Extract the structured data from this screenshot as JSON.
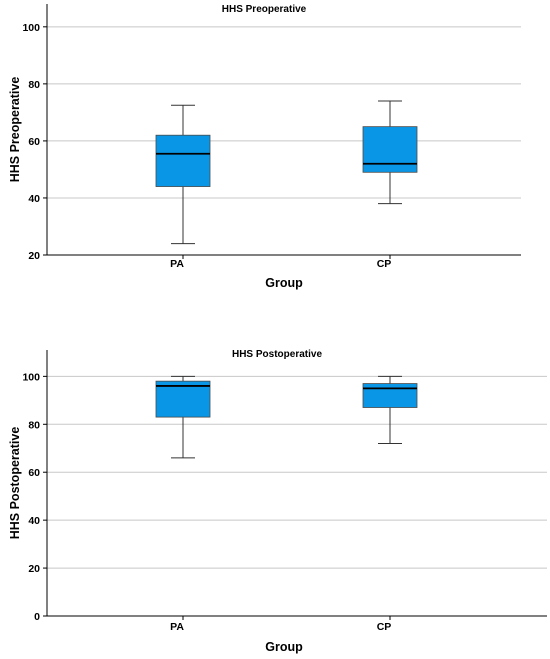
{
  "chart_data": [
    {
      "type": "box",
      "title": "HHS Preoperative",
      "xlabel": "Group",
      "ylabel": "HHS Preoperative",
      "categories": [
        "PA",
        "CP"
      ],
      "ylim": [
        20,
        108
      ],
      "yticks": [
        20,
        40,
        60,
        80,
        100
      ],
      "grid": true,
      "box_color": "#0a96e6",
      "boxes": [
        {
          "category": "PA",
          "min": 24,
          "q1": 44,
          "median": 55.5,
          "q3": 62,
          "max": 72.5
        },
        {
          "category": "CP",
          "min": 38,
          "q1": 49,
          "median": 52,
          "q3": 65,
          "max": 74
        }
      ]
    },
    {
      "type": "box",
      "title": "HHS Postoperative",
      "xlabel": "Group",
      "ylabel": "HHS Postoperative",
      "categories": [
        "PA",
        "CP"
      ],
      "ylim": [
        0,
        111
      ],
      "yticks": [
        0,
        20,
        40,
        60,
        80,
        100
      ],
      "grid": true,
      "box_color": "#0a96e6",
      "boxes": [
        {
          "category": "PA",
          "min": 66,
          "q1": 83,
          "median": 96,
          "q3": 98,
          "max": 100
        },
        {
          "category": "CP",
          "min": 72,
          "q1": 87,
          "median": 95,
          "q3": 97,
          "max": 100
        }
      ]
    }
  ]
}
